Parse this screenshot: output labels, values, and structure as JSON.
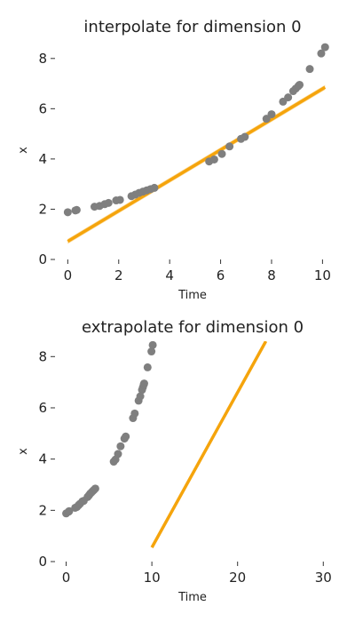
{
  "chart_data": [
    {
      "type": "scatter",
      "title": "interpolate for dimension 0",
      "xlabel": "Time",
      "ylabel": "x",
      "xlim": [
        -0.5,
        10.3
      ],
      "ylim": [
        0,
        8.7
      ],
      "xticks": [
        0,
        2,
        4,
        6,
        8,
        10
      ],
      "yticks": [
        0,
        2,
        4,
        6,
        8
      ],
      "grid": false,
      "series": [
        {
          "kind": "points",
          "color": "#7f7f7f",
          "points": [
            [
              0.0,
              1.88
            ],
            [
              0.3,
              1.95
            ],
            [
              0.35,
              1.97
            ],
            [
              1.05,
              2.1
            ],
            [
              1.25,
              2.13
            ],
            [
              1.45,
              2.2
            ],
            [
              1.6,
              2.25
            ],
            [
              1.9,
              2.35
            ],
            [
              2.05,
              2.37
            ],
            [
              2.5,
              2.52
            ],
            [
              2.65,
              2.58
            ],
            [
              2.8,
              2.65
            ],
            [
              2.95,
              2.7
            ],
            [
              3.1,
              2.75
            ],
            [
              3.25,
              2.8
            ],
            [
              3.4,
              2.85
            ],
            [
              5.55,
              3.9
            ],
            [
              5.75,
              3.98
            ],
            [
              6.05,
              4.2
            ],
            [
              6.35,
              4.5
            ],
            [
              6.8,
              4.8
            ],
            [
              6.95,
              4.88
            ],
            [
              7.8,
              5.6
            ],
            [
              8.0,
              5.78
            ],
            [
              8.45,
              6.28
            ],
            [
              8.65,
              6.45
            ],
            [
              8.85,
              6.7
            ],
            [
              8.95,
              6.8
            ],
            [
              9.05,
              6.9
            ],
            [
              9.1,
              6.95
            ],
            [
              9.5,
              7.58
            ],
            [
              9.95,
              8.2
            ],
            [
              10.1,
              8.45
            ]
          ]
        },
        {
          "kind": "line",
          "color": "#f5a40c",
          "band_color": "#f9c35a",
          "x": [
            0,
            10.1
          ],
          "y": [
            0.72,
            6.85
          ],
          "band": 0.1
        }
      ]
    },
    {
      "type": "scatter",
      "title": "extrapolate for dimension 0",
      "xlabel": "Time",
      "ylabel": "x",
      "xlim": [
        -1.3,
        30.8
      ],
      "ylim": [
        0,
        8.6
      ],
      "xticks": [
        0,
        10,
        20,
        30
      ],
      "yticks": [
        0,
        2,
        4,
        6,
        8
      ],
      "grid": false,
      "series": [
        {
          "kind": "points",
          "color": "#7f7f7f",
          "points": [
            [
              0.0,
              1.88
            ],
            [
              0.3,
              1.95
            ],
            [
              0.35,
              1.97
            ],
            [
              1.05,
              2.1
            ],
            [
              1.25,
              2.13
            ],
            [
              1.45,
              2.2
            ],
            [
              1.6,
              2.25
            ],
            [
              1.9,
              2.35
            ],
            [
              2.05,
              2.37
            ],
            [
              2.5,
              2.52
            ],
            [
              2.65,
              2.58
            ],
            [
              2.8,
              2.65
            ],
            [
              2.95,
              2.7
            ],
            [
              3.1,
              2.75
            ],
            [
              3.25,
              2.8
            ],
            [
              3.4,
              2.85
            ],
            [
              5.55,
              3.9
            ],
            [
              5.75,
              3.98
            ],
            [
              6.05,
              4.2
            ],
            [
              6.35,
              4.5
            ],
            [
              6.8,
              4.8
            ],
            [
              6.95,
              4.88
            ],
            [
              7.8,
              5.6
            ],
            [
              8.0,
              5.78
            ],
            [
              8.45,
              6.28
            ],
            [
              8.65,
              6.45
            ],
            [
              8.85,
              6.7
            ],
            [
              8.95,
              6.8
            ],
            [
              9.05,
              6.9
            ],
            [
              9.1,
              6.95
            ],
            [
              9.5,
              7.58
            ],
            [
              9.95,
              8.2
            ],
            [
              10.1,
              8.45
            ]
          ]
        },
        {
          "kind": "line",
          "color": "#f5a40c",
          "x": [
            10.0,
            23.3
          ],
          "y": [
            0.55,
            8.6
          ]
        }
      ]
    }
  ]
}
